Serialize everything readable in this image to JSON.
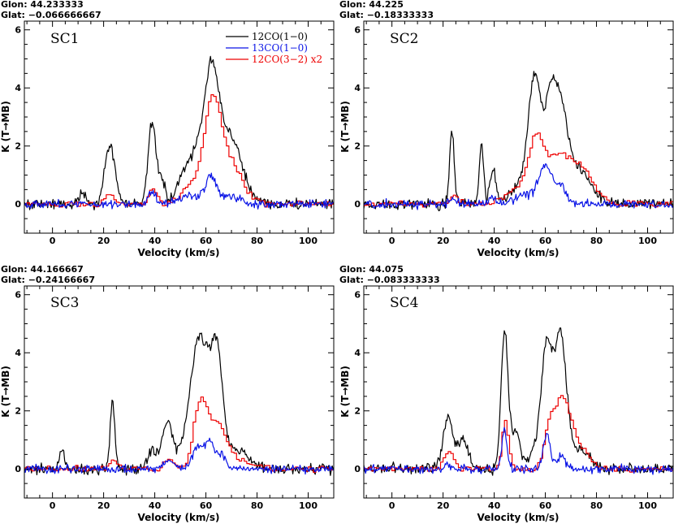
{
  "colors": {
    "c12": "#000000",
    "c13": "#0a14e6",
    "c32": "#ee0000"
  },
  "legend": [
    {
      "label": "12CO(1−0)",
      "color": "#000000"
    },
    {
      "label": "13CO(1−0)",
      "color": "#0a14e6"
    },
    {
      "label": "12CO(3−2) x2",
      "color": "#ee0000"
    }
  ],
  "chart_data": [
    {
      "type": "line",
      "title": "SC1",
      "glon": "Glon: 44.233333",
      "glat": "Glat: −0.066666667",
      "xlabel": "Velocity (km/s)",
      "ylabel": "K (T→MB)",
      "xlim": [
        -11,
        110
      ],
      "ylim": [
        -1.0,
        6.3
      ],
      "xticks": [
        "0",
        "20",
        "40",
        "60",
        "80",
        "100"
      ],
      "yticks": [
        "0",
        "2",
        "4",
        "6"
      ],
      "series": [
        {
          "name": "12CO(1−0)",
          "color": "#000000",
          "noise": 0.09,
          "step": 0.35,
          "components": [
            [
              12,
              0.4,
              1.4
            ],
            [
              22.5,
              2.0,
              2.0
            ],
            [
              39,
              2.8,
              1.6
            ],
            [
              43,
              0.7,
              1.2
            ],
            [
              53,
              1.3,
              3.5
            ],
            [
              62,
              4.0,
              2.8
            ],
            [
              69,
              2.3,
              5.0
            ],
            [
              57,
              0.8,
              2.0
            ]
          ]
        },
        {
          "name": "13CO(1−0)",
          "color": "#0a14e6",
          "noise": 0.07,
          "step": 0.35,
          "components": [
            [
              39,
              0.45,
              1.3
            ],
            [
              62,
              0.8,
              2.2
            ],
            [
              54,
              0.3,
              5.0
            ],
            [
              70,
              0.25,
              4.0
            ]
          ]
        },
        {
          "name": "12CO(3−2) x2",
          "color": "#ee0000",
          "noise": 0.05,
          "step": 1.0,
          "components": [
            [
              22,
              0.3,
              2.0
            ],
            [
              39,
              0.5,
              1.5
            ],
            [
              62,
              2.8,
              3.0
            ],
            [
              68,
              1.6,
              5.0
            ],
            [
              55,
              0.7,
              4.0
            ]
          ]
        }
      ]
    },
    {
      "type": "line",
      "title": "SC2",
      "glon": "Glon: 44.225",
      "glat": "Glat: −0.18333333",
      "xlabel": "Velocity (km/s)",
      "ylabel": "K (T→MB)",
      "xlim": [
        -11,
        110
      ],
      "ylim": [
        -1.0,
        6.3
      ],
      "xticks": [
        "0",
        "20",
        "40",
        "60",
        "80",
        "100"
      ],
      "yticks": [
        "0",
        "2",
        "4",
        "6"
      ],
      "series": [
        {
          "name": "12CO(1−0)",
          "color": "#000000",
          "noise": 0.09,
          "step": 0.35,
          "components": [
            [
              23.5,
              2.5,
              0.9
            ],
            [
              35,
              2.1,
              0.8
            ],
            [
              39.5,
              1.2,
              1.2
            ],
            [
              50,
              0.6,
              3.5
            ],
            [
              56,
              4.3,
              2.6
            ],
            [
              62,
              3.1,
              2.0
            ],
            [
              66,
              2.8,
              2.4
            ],
            [
              72,
              1.3,
              5.0
            ]
          ]
        },
        {
          "name": "13CO(1−0)",
          "color": "#0a14e6",
          "noise": 0.07,
          "step": 0.35,
          "components": [
            [
              24,
              0.25,
              1.0
            ],
            [
              39,
              0.2,
              1.2
            ],
            [
              60,
              1.3,
              2.6
            ],
            [
              66,
              0.6,
              2.0
            ],
            [
              52,
              0.3,
              4.0
            ]
          ]
        },
        {
          "name": "12CO(3−2) x2",
          "color": "#ee0000",
          "noise": 0.05,
          "step": 1.0,
          "components": [
            [
              56,
              2.2,
              3.0
            ],
            [
              64,
              1.4,
              4.0
            ],
            [
              73,
              1.3,
              5.0
            ],
            [
              48,
              0.5,
              4.0
            ],
            [
              24,
              0.3,
              1.5
            ]
          ]
        }
      ]
    },
    {
      "type": "line",
      "title": "SC3",
      "glon": "Glon: 44.166667",
      "glat": "Glat: −0.24166667",
      "xlabel": "Velocity (km/s)",
      "ylabel": "K (T→MB)",
      "xlim": [
        -11,
        110
      ],
      "ylim": [
        -1.0,
        6.3
      ],
      "xticks": [
        "0",
        "20",
        "40",
        "60",
        "80",
        "100"
      ],
      "yticks": [
        "0",
        "2",
        "4",
        "6"
      ],
      "series": [
        {
          "name": "12CO(1−0)",
          "color": "#000000",
          "noise": 0.09,
          "step": 0.35,
          "components": [
            [
              3.5,
              0.7,
              0.8
            ],
            [
              23.5,
              2.4,
              0.9
            ],
            [
              39,
              0.6,
              2.0
            ],
            [
              45,
              1.6,
              2.0
            ],
            [
              52,
              1.0,
              2.5
            ],
            [
              57,
              4.1,
              2.6
            ],
            [
              64.5,
              3.5,
              2.0
            ],
            [
              61,
              2.0,
              2.0
            ],
            [
              70,
              0.7,
              6.0
            ]
          ]
        },
        {
          "name": "13CO(1−0)",
          "color": "#0a14e6",
          "noise": 0.07,
          "step": 0.35,
          "components": [
            [
              45,
              0.25,
              2.0
            ],
            [
              57,
              0.8,
              2.2
            ],
            [
              61.5,
              0.85,
              1.6
            ],
            [
              66,
              0.5,
              2.0
            ]
          ]
        },
        {
          "name": "12CO(3−2) x2",
          "color": "#ee0000",
          "noise": 0.05,
          "step": 1.0,
          "components": [
            [
              23.5,
              0.35,
              1.5
            ],
            [
              45,
              0.3,
              2.0
            ],
            [
              57.5,
              2.3,
              2.6
            ],
            [
              64,
              1.3,
              3.0
            ],
            [
              70,
              0.4,
              6.0
            ]
          ]
        }
      ]
    },
    {
      "type": "line",
      "title": "SC4",
      "glon": "Glon: 44.075",
      "glat": "Glat: −0.083333333",
      "xlabel": "Velocity (km/s)",
      "ylabel": "K (T→MB)",
      "xlim": [
        -11,
        110
      ],
      "ylim": [
        -1.0,
        6.3
      ],
      "xticks": [
        "0",
        "20",
        "40",
        "60",
        "80",
        "100"
      ],
      "yticks": [
        "0",
        "2",
        "4",
        "6"
      ],
      "series": [
        {
          "name": "12CO(1−0)",
          "color": "#000000",
          "noise": 0.09,
          "step": 0.35,
          "components": [
            [
              22,
              1.8,
              2.0
            ],
            [
              28,
              1.0,
              2.0
            ],
            [
              44,
              4.6,
              1.3
            ],
            [
              48,
              1.3,
              2.0
            ],
            [
              60.5,
              4.3,
              2.2
            ],
            [
              66,
              4.4,
              2.2
            ],
            [
              73,
              0.7,
              4.0
            ],
            [
              55,
              0.5,
              2.0
            ]
          ]
        },
        {
          "name": "13CO(1−0)",
          "color": "#0a14e6",
          "noise": 0.07,
          "step": 0.35,
          "components": [
            [
              44,
              1.35,
              1.0
            ],
            [
              60.5,
              1.2,
              1.3
            ],
            [
              66,
              0.4,
              2.0
            ],
            [
              22,
              0.15,
              1.5
            ]
          ]
        },
        {
          "name": "12CO(3−2) x2",
          "color": "#ee0000",
          "noise": 0.05,
          "step": 1.0,
          "components": [
            [
              22,
              0.55,
              2.0
            ],
            [
              44,
              1.6,
              1.3
            ],
            [
              61,
              1.2,
              2.0
            ],
            [
              66,
              2.2,
              3.0
            ],
            [
              72,
              0.8,
              4.0
            ]
          ]
        }
      ]
    }
  ]
}
